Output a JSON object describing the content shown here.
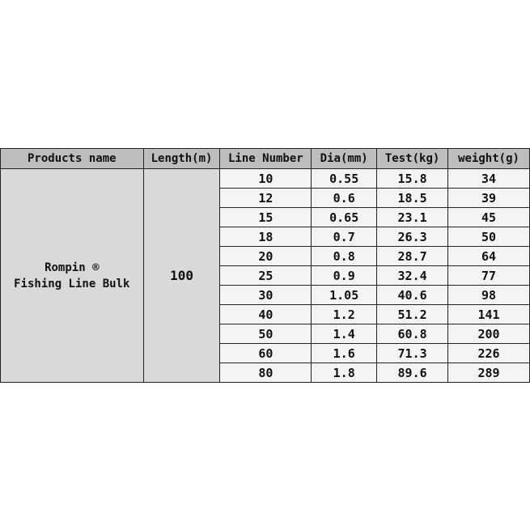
{
  "headers": [
    "Products name",
    "Length(m)",
    "Line Number",
    "Dia(mm)",
    "Test(kg)",
    "weight(g)"
  ],
  "product_name_line1": "Rompin ®",
  "product_name_line2": "Fishing Line Bulk",
  "length": "100",
  "rows": [
    [
      "10",
      "0.55",
      "15.8",
      "34"
    ],
    [
      "12",
      "0.6",
      "18.5",
      "39"
    ],
    [
      "15",
      "0.65",
      "23.1",
      "45"
    ],
    [
      "18",
      "0.7",
      "26.3",
      "50"
    ],
    [
      "20",
      "0.8",
      "28.7",
      "64"
    ],
    [
      "25",
      "0.9",
      "32.4",
      "77"
    ],
    [
      "30",
      "1.05",
      "40.6",
      "98"
    ],
    [
      "40",
      "1.2",
      "51.2",
      "141"
    ],
    [
      "50",
      "1.4",
      "60.8",
      "200"
    ],
    [
      "60",
      "1.6",
      "71.3",
      "226"
    ],
    [
      "80",
      "1.8",
      "89.6",
      "289"
    ]
  ]
}
